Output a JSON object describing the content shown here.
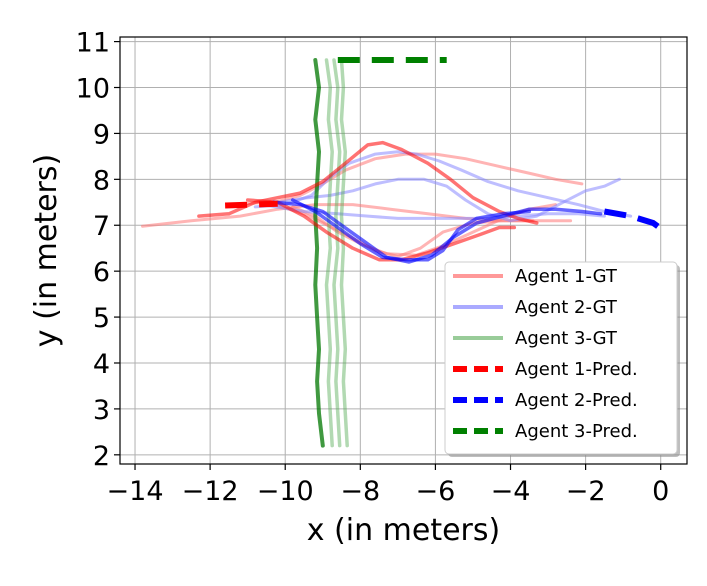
{
  "chart_data": {
    "type": "line",
    "xlabel": "x (in meters)",
    "ylabel": "y (in meters)",
    "xlim": [
      -14.4,
      0.7
    ],
    "ylim": [
      1.8,
      11.1
    ],
    "xticks": [
      -14,
      -12,
      -10,
      -8,
      -6,
      -4,
      -2,
      0
    ],
    "xtick_labels": [
      "−14",
      "−12",
      "−10",
      "−8",
      "−6",
      "−4",
      "−2",
      "0"
    ],
    "yticks": [
      2,
      3,
      4,
      5,
      6,
      7,
      8,
      9,
      10,
      11
    ],
    "ytick_labels": [
      "2",
      "3",
      "4",
      "5",
      "6",
      "7",
      "8",
      "9",
      "10",
      "11"
    ],
    "grid": true,
    "legend_position": "lower-right",
    "legend": [
      {
        "label": "Agent 1-GT",
        "color": "#ff9999",
        "style": "solid"
      },
      {
        "label": "Agent 2-GT",
        "color": "#aaaaff",
        "style": "solid"
      },
      {
        "label": "Agent 3-GT",
        "color": "#99cc99",
        "style": "solid"
      },
      {
        "label": "Agent 1-Pred.",
        "color": "#ff0000",
        "style": "dashed"
      },
      {
        "label": "Agent 2-Pred.",
        "color": "#0000ff",
        "style": "dashed"
      },
      {
        "label": "Agent 3-Pred.",
        "color": "#008000",
        "style": "dashed"
      }
    ],
    "series": [
      {
        "group": "gt1",
        "color": "#ff7777",
        "opacity": 0.55,
        "width": 3,
        "points": [
          [
            -13.8,
            6.98
          ],
          [
            -12.5,
            7.1
          ],
          [
            -11.2,
            7.2
          ],
          [
            -10.2,
            7.35
          ],
          [
            -9.2,
            7.45
          ],
          [
            -8.2,
            7.45
          ],
          [
            -7.2,
            7.35
          ],
          [
            -6.2,
            7.25
          ],
          [
            -5.2,
            7.15
          ],
          [
            -4.2,
            7.1
          ],
          [
            -3.4,
            7.1
          ],
          [
            -2.4,
            7.1
          ]
        ]
      },
      {
        "group": "gt1",
        "color": "#ff7777",
        "opacity": 0.55,
        "width": 3,
        "points": [
          [
            -11.5,
            7.45
          ],
          [
            -10.5,
            7.5
          ],
          [
            -9.5,
            7.25
          ],
          [
            -8.5,
            6.85
          ],
          [
            -7.6,
            6.45
          ],
          [
            -7.0,
            6.32
          ],
          [
            -6.4,
            6.5
          ],
          [
            -5.8,
            6.85
          ],
          [
            -5.0,
            7.05
          ],
          [
            -4.2,
            7.1
          ],
          [
            -3.4,
            7.1
          ]
        ]
      },
      {
        "group": "gt1",
        "color": "#ff7777",
        "opacity": 0.55,
        "width": 3,
        "points": [
          [
            -10.5,
            7.45
          ],
          [
            -9.6,
            7.65
          ],
          [
            -9.0,
            7.9
          ],
          [
            -8.4,
            8.2
          ],
          [
            -7.6,
            8.45
          ],
          [
            -6.8,
            8.55
          ],
          [
            -6.0,
            8.55
          ],
          [
            -5.2,
            8.45
          ],
          [
            -4.4,
            8.3
          ],
          [
            -3.6,
            8.15
          ],
          [
            -2.8,
            8.0
          ],
          [
            -2.1,
            7.9
          ]
        ]
      },
      {
        "group": "gt1",
        "color": "#ff7777",
        "opacity": 0.55,
        "width": 3,
        "points": [
          [
            -9.8,
            7.4
          ],
          [
            -9.2,
            7.2
          ],
          [
            -8.6,
            6.85
          ],
          [
            -8.0,
            6.6
          ],
          [
            -7.3,
            6.38
          ],
          [
            -6.5,
            6.35
          ],
          [
            -5.8,
            6.55
          ],
          [
            -5.0,
            6.85
          ],
          [
            -4.2,
            7.15
          ],
          [
            -3.5,
            7.35
          ],
          [
            -2.8,
            7.45
          ]
        ]
      },
      {
        "group": "gt2",
        "color": "#8888ff",
        "opacity": 0.55,
        "width": 3,
        "points": [
          [
            -10.8,
            7.4
          ],
          [
            -10.0,
            7.45
          ],
          [
            -9.3,
            7.65
          ],
          [
            -8.8,
            8.05
          ],
          [
            -8.3,
            8.35
          ],
          [
            -7.6,
            8.55
          ],
          [
            -7.0,
            8.6
          ],
          [
            -6.5,
            8.55
          ],
          [
            -5.9,
            8.4
          ],
          [
            -5.3,
            8.2
          ],
          [
            -4.6,
            7.95
          ],
          [
            -3.8,
            7.75
          ],
          [
            -3.0,
            7.6
          ],
          [
            -2.2,
            7.45
          ],
          [
            -1.5,
            7.3
          ],
          [
            -0.8,
            7.2
          ]
        ]
      },
      {
        "group": "gt2",
        "color": "#8888ff",
        "opacity": 0.55,
        "width": 3,
        "points": [
          [
            -10.6,
            7.45
          ],
          [
            -9.5,
            7.3
          ],
          [
            -8.6,
            7.25
          ],
          [
            -7.8,
            7.2
          ],
          [
            -7.0,
            7.15
          ],
          [
            -6.2,
            7.15
          ],
          [
            -5.4,
            7.15
          ],
          [
            -4.6,
            7.15
          ],
          [
            -3.8,
            7.2
          ],
          [
            -3.0,
            7.25
          ],
          [
            -2.2,
            7.25
          ],
          [
            -1.5,
            7.2
          ]
        ]
      },
      {
        "group": "gt2",
        "color": "#8888ff",
        "opacity": 0.55,
        "width": 3,
        "points": [
          [
            -10.2,
            7.5
          ],
          [
            -9.4,
            7.6
          ],
          [
            -8.8,
            7.65
          ],
          [
            -8.2,
            7.75
          ],
          [
            -7.6,
            7.9
          ],
          [
            -7.0,
            8.0
          ],
          [
            -6.3,
            8.0
          ],
          [
            -5.7,
            7.85
          ],
          [
            -5.2,
            7.55
          ],
          [
            -4.6,
            7.25
          ],
          [
            -4.0,
            7.1
          ],
          [
            -3.3,
            7.2
          ],
          [
            -2.6,
            7.5
          ],
          [
            -2.0,
            7.75
          ],
          [
            -1.5,
            7.85
          ],
          [
            -1.1,
            8.0
          ]
        ]
      },
      {
        "group": "gt3",
        "color": "#55aa55",
        "opacity": 0.45,
        "width": 3.5,
        "points": [
          [
            -8.9,
            10.6
          ],
          [
            -8.8,
            10.0
          ],
          [
            -8.85,
            9.3
          ],
          [
            -8.75,
            8.6
          ],
          [
            -8.8,
            7.9
          ],
          [
            -8.85,
            7.2
          ],
          [
            -8.8,
            6.5
          ],
          [
            -8.9,
            5.7
          ],
          [
            -8.85,
            5.0
          ],
          [
            -8.8,
            4.3
          ],
          [
            -8.85,
            3.6
          ],
          [
            -8.8,
            2.9
          ],
          [
            -8.75,
            2.2
          ]
        ]
      },
      {
        "group": "gt3",
        "color": "#55aa55",
        "opacity": 0.45,
        "width": 3.5,
        "points": [
          [
            -8.7,
            10.6
          ],
          [
            -8.6,
            10.0
          ],
          [
            -8.65,
            9.3
          ],
          [
            -8.55,
            8.6
          ],
          [
            -8.6,
            7.9
          ],
          [
            -8.65,
            7.2
          ],
          [
            -8.6,
            6.5
          ],
          [
            -8.7,
            5.7
          ],
          [
            -8.65,
            5.0
          ],
          [
            -8.6,
            4.3
          ],
          [
            -8.65,
            3.6
          ],
          [
            -8.6,
            2.9
          ],
          [
            -8.55,
            2.2
          ]
        ]
      },
      {
        "group": "gt3",
        "color": "#55aa55",
        "opacity": 0.45,
        "width": 3.5,
        "points": [
          [
            -8.5,
            10.6
          ],
          [
            -8.45,
            10.0
          ],
          [
            -8.5,
            9.3
          ],
          [
            -8.4,
            8.6
          ],
          [
            -8.45,
            7.9
          ],
          [
            -8.5,
            7.2
          ],
          [
            -8.45,
            6.5
          ],
          [
            -8.5,
            5.7
          ],
          [
            -8.45,
            5.0
          ],
          [
            -8.4,
            4.3
          ],
          [
            -8.45,
            3.6
          ],
          [
            -8.4,
            2.9
          ],
          [
            -8.35,
            2.2
          ]
        ]
      },
      {
        "group": "gt3",
        "color": "#007700",
        "opacity": 0.75,
        "width": 4,
        "points": [
          [
            -9.2,
            10.6
          ],
          [
            -9.1,
            10.0
          ],
          [
            -9.2,
            9.3
          ],
          [
            -9.1,
            8.6
          ],
          [
            -9.15,
            7.9
          ],
          [
            -9.2,
            7.2
          ],
          [
            -9.15,
            6.5
          ],
          [
            -9.2,
            5.7
          ],
          [
            -9.15,
            5.0
          ],
          [
            -9.1,
            4.3
          ],
          [
            -9.15,
            3.6
          ],
          [
            -9.1,
            2.9
          ],
          [
            -9.0,
            2.2
          ]
        ]
      },
      {
        "group": "traj1",
        "color": "#ff0000",
        "opacity": 0.55,
        "width": 3.5,
        "points": [
          [
            -12.3,
            7.2
          ],
          [
            -11.5,
            7.25
          ],
          [
            -10.8,
            7.5
          ],
          [
            -10.2,
            7.6
          ],
          [
            -9.6,
            7.7
          ],
          [
            -9.0,
            7.95
          ],
          [
            -8.4,
            8.35
          ],
          [
            -7.8,
            8.75
          ],
          [
            -7.4,
            8.8
          ],
          [
            -6.9,
            8.65
          ],
          [
            -6.2,
            8.35
          ],
          [
            -5.6,
            8.0
          ],
          [
            -5.0,
            7.6
          ],
          [
            -4.3,
            7.3
          ],
          [
            -3.8,
            7.15
          ],
          [
            -3.3,
            7.05
          ]
        ]
      },
      {
        "group": "traj1",
        "color": "#ff0000",
        "opacity": 0.55,
        "width": 3.5,
        "points": [
          [
            -11.0,
            7.55
          ],
          [
            -10.2,
            7.5
          ],
          [
            -9.5,
            7.2
          ],
          [
            -8.9,
            6.85
          ],
          [
            -8.2,
            6.5
          ],
          [
            -7.5,
            6.25
          ],
          [
            -6.9,
            6.25
          ],
          [
            -6.2,
            6.4
          ],
          [
            -5.5,
            6.6
          ],
          [
            -4.8,
            6.8
          ],
          [
            -4.3,
            6.95
          ],
          [
            -3.9,
            6.95
          ]
        ]
      },
      {
        "group": "traj2",
        "color": "#0000ff",
        "opacity": 0.6,
        "width": 3.5,
        "points": [
          [
            -10.3,
            7.5
          ],
          [
            -9.6,
            7.45
          ],
          [
            -9.0,
            7.3
          ],
          [
            -8.5,
            7.0
          ],
          [
            -7.9,
            6.65
          ],
          [
            -7.3,
            6.3
          ],
          [
            -6.7,
            6.2
          ],
          [
            -6.1,
            6.35
          ],
          [
            -5.5,
            6.75
          ],
          [
            -4.9,
            7.05
          ],
          [
            -4.2,
            7.2
          ],
          [
            -3.5,
            7.35
          ],
          [
            -2.8,
            7.35
          ],
          [
            -2.1,
            7.3
          ],
          [
            -1.6,
            7.25
          ]
        ]
      },
      {
        "group": "traj2",
        "color": "#0000ff",
        "opacity": 0.6,
        "width": 3.5,
        "points": [
          [
            -9.8,
            7.55
          ],
          [
            -9.2,
            7.3
          ],
          [
            -8.6,
            6.95
          ],
          [
            -8.0,
            6.6
          ],
          [
            -7.4,
            6.3
          ],
          [
            -6.8,
            6.25
          ],
          [
            -6.2,
            6.25
          ],
          [
            -5.8,
            6.45
          ],
          [
            -5.4,
            6.9
          ],
          [
            -4.9,
            7.15
          ],
          [
            -4.2,
            7.25
          ],
          [
            -3.5,
            7.3
          ]
        ]
      },
      {
        "group": "pred1",
        "color": "#ff0000",
        "opacity": 1,
        "width": 6,
        "dash": true,
        "points": [
          [
            -11.6,
            7.43
          ],
          [
            -10.2,
            7.47
          ]
        ]
      },
      {
        "group": "pred2",
        "color": "#0000ff",
        "opacity": 1,
        "width": 6,
        "dash": true,
        "points": [
          [
            -1.5,
            7.3
          ],
          [
            -0.8,
            7.2
          ],
          [
            -0.2,
            7.05
          ],
          [
            0.05,
            6.9
          ]
        ]
      },
      {
        "group": "pred3",
        "color": "#008000",
        "opacity": 1,
        "width": 6,
        "dash": true,
        "points": [
          [
            -8.6,
            10.6
          ],
          [
            -5.7,
            10.6
          ]
        ]
      }
    ]
  }
}
